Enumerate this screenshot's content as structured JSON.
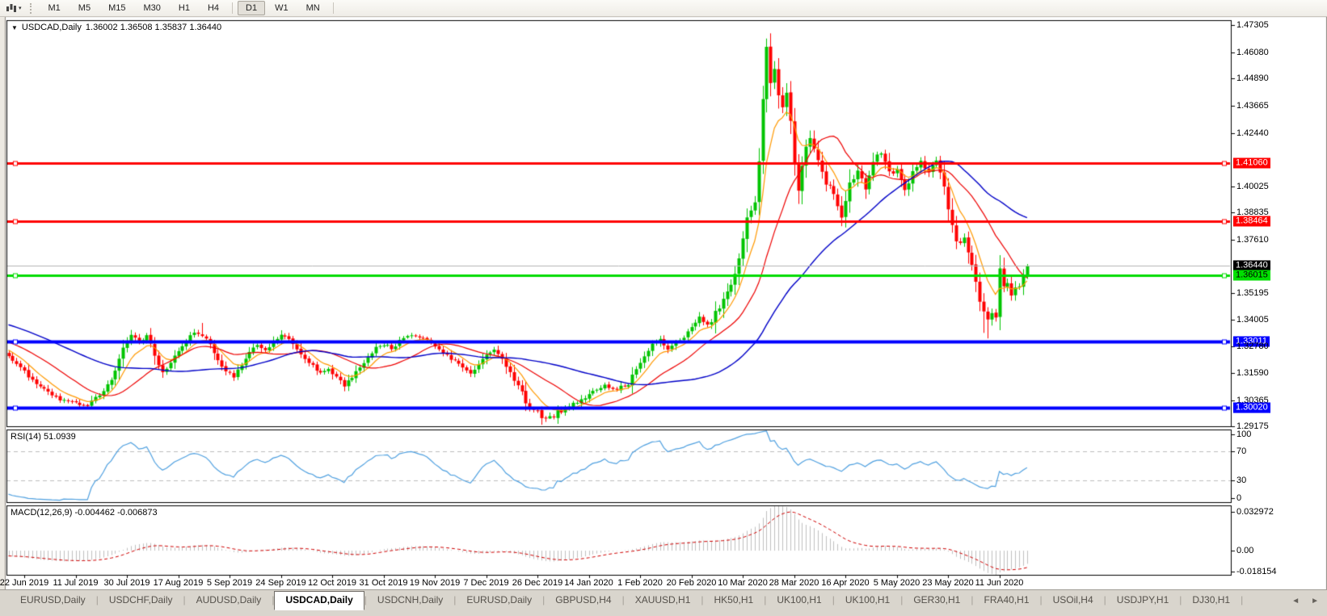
{
  "toolbar": {
    "timeframes": [
      "M1",
      "M5",
      "M15",
      "M30",
      "H1",
      "H4",
      "D1",
      "W1",
      "MN"
    ],
    "active_timeframe": "D1",
    "chart_tool_icon": "chart-windows-icon"
  },
  "chart": {
    "title_symbol": "USDCAD,Daily",
    "title_values": "1.36002 1.36508 1.35837 1.36440"
  },
  "chart_data": {
    "type": "candlestick",
    "symbol": "USDCAD",
    "timeframe": "Daily",
    "current_ohlc": {
      "open": 1.36002,
      "high": 1.36508,
      "low": 1.35837,
      "close": 1.3644
    },
    "bars": 259,
    "colors": {
      "up": "#00C400",
      "down": "#FF0000",
      "rsi_line": "#4FA0E0",
      "macd_hist": "#C0C0C0",
      "macd_signal": "#D00000",
      "current_line": "#B4B4B4"
    },
    "moving_averages": [
      {
        "name": "fast",
        "type": "ema",
        "period": 8,
        "color": "#FF9900"
      },
      {
        "name": "medium",
        "type": "sma",
        "period": 20,
        "color": "#EE0000"
      },
      {
        "name": "slow",
        "type": "sma",
        "period": 50,
        "color": "#0000C8"
      }
    ],
    "prehistory_anchors": [
      [
        -60,
        1.353
      ],
      [
        -45,
        1.348
      ],
      [
        -30,
        1.341
      ],
      [
        -15,
        1.333
      ],
      [
        -1,
        1.325
      ]
    ],
    "close_anchors": [
      [
        0,
        1.3235
      ],
      [
        3,
        1.318
      ],
      [
        7,
        1.311
      ],
      [
        11,
        1.306
      ],
      [
        14,
        1.303
      ],
      [
        17,
        1.3022
      ],
      [
        20,
        1.3012
      ],
      [
        23,
        1.306
      ],
      [
        26,
        1.312
      ],
      [
        29,
        1.327
      ],
      [
        31,
        1.3335
      ],
      [
        33,
        1.33
      ],
      [
        35,
        1.333
      ],
      [
        37,
        1.324
      ],
      [
        39,
        1.316
      ],
      [
        41,
        1.32
      ],
      [
        43,
        1.326
      ],
      [
        45,
        1.331
      ],
      [
        47,
        1.3335
      ],
      [
        49,
        1.333
      ],
      [
        51,
        1.329
      ],
      [
        53,
        1.322
      ],
      [
        55,
        1.317
      ],
      [
        57,
        1.3145
      ],
      [
        59,
        1.32
      ],
      [
        61,
        1.326
      ],
      [
        63,
        1.328
      ],
      [
        65,
        1.326
      ],
      [
        67,
        1.33
      ],
      [
        69,
        1.333
      ],
      [
        71,
        1.331
      ],
      [
        73,
        1.327
      ],
      [
        75,
        1.323
      ],
      [
        77,
        1.319
      ],
      [
        79,
        1.316
      ],
      [
        81,
        1.318
      ],
      [
        83,
        1.314
      ],
      [
        85,
        1.3105
      ],
      [
        87,
        1.314
      ],
      [
        89,
        1.318
      ],
      [
        91,
        1.323
      ],
      [
        93,
        1.327
      ],
      [
        95,
        1.329
      ],
      [
        97,
        1.327
      ],
      [
        99,
        1.33
      ],
      [
        101,
        1.332
      ],
      [
        103,
        1.333
      ],
      [
        105,
        1.332
      ],
      [
        107,
        1.33
      ],
      [
        109,
        1.327
      ],
      [
        111,
        1.324
      ],
      [
        113,
        1.321
      ],
      [
        115,
        1.318
      ],
      [
        117,
        1.316
      ],
      [
        119,
        1.32
      ],
      [
        121,
        1.324
      ],
      [
        123,
        1.327
      ],
      [
        125,
        1.322
      ],
      [
        127,
        1.316
      ],
      [
        129,
        1.31
      ],
      [
        131,
        1.303
      ],
      [
        133,
        1.299
      ],
      [
        135,
        1.2965
      ],
      [
        137,
        1.2955
      ],
      [
        139,
        1.2985
      ],
      [
        141,
        1.3
      ],
      [
        143,
        1.302
      ],
      [
        145,
        1.304
      ],
      [
        147,
        1.306
      ],
      [
        149,
        1.309
      ],
      [
        151,
        1.3105
      ],
      [
        153,
        1.308
      ],
      [
        155,
        1.31
      ],
      [
        157,
        1.311
      ],
      [
        159,
        1.318
      ],
      [
        161,
        1.324
      ],
      [
        163,
        1.329
      ],
      [
        165,
        1.331
      ],
      [
        167,
        1.327
      ],
      [
        169,
        1.33
      ],
      [
        171,
        1.332
      ],
      [
        173,
        1.336
      ],
      [
        175,
        1.342
      ],
      [
        177,
        1.337
      ],
      [
        179,
        1.343
      ],
      [
        181,
        1.348
      ],
      [
        183,
        1.356
      ],
      [
        185,
        1.368
      ],
      [
        187,
        1.386
      ],
      [
        189,
        1.395
      ],
      [
        190,
        1.41
      ],
      [
        191,
        1.44
      ],
      [
        192,
        1.462
      ],
      [
        193,
        1.448
      ],
      [
        194,
        1.455
      ],
      [
        195,
        1.44
      ],
      [
        196,
        1.434
      ],
      [
        197,
        1.442
      ],
      [
        198,
        1.428
      ],
      [
        199,
        1.41
      ],
      [
        200,
        1.399
      ],
      [
        201,
        1.409
      ],
      [
        202,
        1.418
      ],
      [
        203,
        1.423
      ],
      [
        205,
        1.413
      ],
      [
        207,
        1.403
      ],
      [
        209,
        1.396
      ],
      [
        211,
        1.387
      ],
      [
        213,
        1.402
      ],
      [
        215,
        1.407
      ],
      [
        217,
        1.4
      ],
      [
        219,
        1.412
      ],
      [
        221,
        1.416
      ],
      [
        223,
        1.406
      ],
      [
        225,
        1.408
      ],
      [
        227,
        1.399
      ],
      [
        229,
        1.406
      ],
      [
        231,
        1.411
      ],
      [
        233,
        1.407
      ],
      [
        235,
        1.411
      ],
      [
        237,
        1.401
      ],
      [
        238,
        1.39
      ],
      [
        239,
        1.382
      ],
      [
        240,
        1.376
      ],
      [
        241,
        1.374
      ],
      [
        242,
        1.378
      ],
      [
        243,
        1.37
      ],
      [
        244,
        1.365
      ],
      [
        245,
        1.356
      ],
      [
        246,
        1.349
      ],
      [
        247,
        1.343
      ],
      [
        248,
        1.34
      ],
      [
        249,
        1.344
      ],
      [
        250,
        1.3415
      ],
      [
        251,
        1.363
      ],
      [
        252,
        1.3545
      ],
      [
        253,
        1.3555
      ],
      [
        254,
        1.352
      ],
      [
        255,
        1.3545
      ],
      [
        256,
        1.355
      ],
      [
        257,
        1.36
      ],
      [
        258,
        1.3644
      ]
    ],
    "bar_overrides": {
      "20": {
        "l": 1.3005
      },
      "49": {
        "h": 1.3385
      },
      "137": {
        "l": 1.2951
      },
      "192": {
        "h": 1.467
      },
      "247": {
        "l": 1.334
      },
      "248": {
        "l": 1.3315
      },
      "258": {
        "o": 1.36002,
        "h": 1.36508,
        "l": 1.35837,
        "c": 1.3644
      }
    },
    "volatility_zones": [
      [
        128,
        140,
        1.6
      ],
      [
        178,
        208,
        2.6
      ],
      [
        209,
        245,
        1.5
      ],
      [
        246,
        258,
        1.7
      ]
    ],
    "levels": [
      {
        "price": 1.4106,
        "color": "#FF0000",
        "width": 3,
        "style": "red"
      },
      {
        "price": 1.38464,
        "color": "#FF0000",
        "width": 3,
        "style": "red"
      },
      {
        "price": 1.36015,
        "color": "#00DC00",
        "width": 3,
        "style": "green"
      },
      {
        "price": 1.33011,
        "color": "#0000FF",
        "width": 4,
        "style": "blue"
      },
      {
        "price": 1.3002,
        "color": "#0000FF",
        "width": 4,
        "style": "blue"
      }
    ],
    "current_price_line": {
      "price": 1.3644,
      "style": "black"
    },
    "price_axis": [
      {
        "text": "1.47305",
        "price": 1.47305,
        "style": "plain"
      },
      {
        "text": "1.46080",
        "price": 1.4608,
        "style": "plain"
      },
      {
        "text": "1.44890",
        "price": 1.4489,
        "style": "plain"
      },
      {
        "text": "1.43665",
        "price": 1.43665,
        "style": "plain"
      },
      {
        "text": "1.42440",
        "price": 1.4244,
        "style": "plain"
      },
      {
        "text": "1.41060",
        "price": 1.4106,
        "style": "red"
      },
      {
        "text": "1.40025",
        "price": 1.40025,
        "style": "plain"
      },
      {
        "text": "1.38835",
        "price": 1.38835,
        "style": "plain"
      },
      {
        "text": "1.38464",
        "price": 1.38464,
        "style": "red"
      },
      {
        "text": "1.37610",
        "price": 1.3761,
        "style": "plain"
      },
      {
        "text": "1.36440",
        "price": 1.3644,
        "style": "black"
      },
      {
        "text": "1.36015",
        "price": 1.36015,
        "style": "green"
      },
      {
        "text": "1.35195",
        "price": 1.35195,
        "style": "plain"
      },
      {
        "text": "1.34005",
        "price": 1.34005,
        "style": "plain"
      },
      {
        "text": "1.33011",
        "price": 1.33011,
        "style": "blue"
      },
      {
        "text": "1.32780",
        "price": 1.3278,
        "style": "plain"
      },
      {
        "text": "1.31590",
        "price": 1.3159,
        "style": "plain"
      },
      {
        "text": "1.30365",
        "price": 1.30365,
        "style": "plain"
      },
      {
        "text": "1.30020",
        "price": 1.3002,
        "style": "blue"
      },
      {
        "text": "1.29175",
        "price": 1.29175,
        "style": "plain"
      }
    ],
    "date_labels": [
      "22 Jun 2019",
      "11 Jul 2019",
      "30 Jul 2019",
      "17 Aug 2019",
      "5 Sep 2019",
      "24 Sep 2019",
      "12 Oct 2019",
      "31 Oct 2019",
      "19 Nov 2019",
      "7 Dec 2019",
      "26 Dec 2019",
      "14 Jan 2020",
      "1 Feb 2020",
      "20 Feb 2020",
      "10 Mar 2020",
      "28 Mar 2020",
      "16 Apr 2020",
      "5 May 2020",
      "23 May 2020",
      "11 Jun 2020"
    ],
    "rsi": {
      "label": "RSI(14) 51.0939",
      "period": 14,
      "value": 51.0939,
      "axis_labels": [
        "100",
        "70",
        "30",
        "0"
      ],
      "axis_values": [
        100,
        70,
        30,
        0
      ],
      "level_lines": [
        70,
        30
      ]
    },
    "macd": {
      "label": "MACD(12,26,9) -0.004462 -0.006873",
      "fast": 12,
      "slow": 26,
      "signal_period": 9,
      "value": -0.004462,
      "signal_value": -0.006873,
      "axis_labels": [
        "0.032972",
        "0.00",
        "-0.018154"
      ],
      "axis_values": [
        0.032972,
        0.0,
        -0.018154
      ]
    }
  },
  "tabs": {
    "items": [
      {
        "label": "EURUSD,Daily",
        "active": false
      },
      {
        "label": "USDCHF,Daily",
        "active": false
      },
      {
        "label": "AUDUSD,Daily",
        "active": false
      },
      {
        "label": "USDCAD,Daily",
        "active": true
      },
      {
        "label": "USDCNH,Daily",
        "active": false
      },
      {
        "label": "EURUSD,Daily",
        "active": false
      },
      {
        "label": "GBPUSD,H4",
        "active": false
      },
      {
        "label": "XAUUSD,H1",
        "active": false
      },
      {
        "label": "HK50,H1",
        "active": false
      },
      {
        "label": "UK100,H1",
        "active": false
      },
      {
        "label": "UK100,H1",
        "active": false
      },
      {
        "label": "GER30,H1",
        "active": false
      },
      {
        "label": "FRA40,H1",
        "active": false
      },
      {
        "label": "USOil,H4",
        "active": false
      },
      {
        "label": "USDJPY,H1",
        "active": false
      },
      {
        "label": "DJ30,H1",
        "active": false
      }
    ],
    "scroll_left": "◄",
    "scroll_right": "►"
  }
}
